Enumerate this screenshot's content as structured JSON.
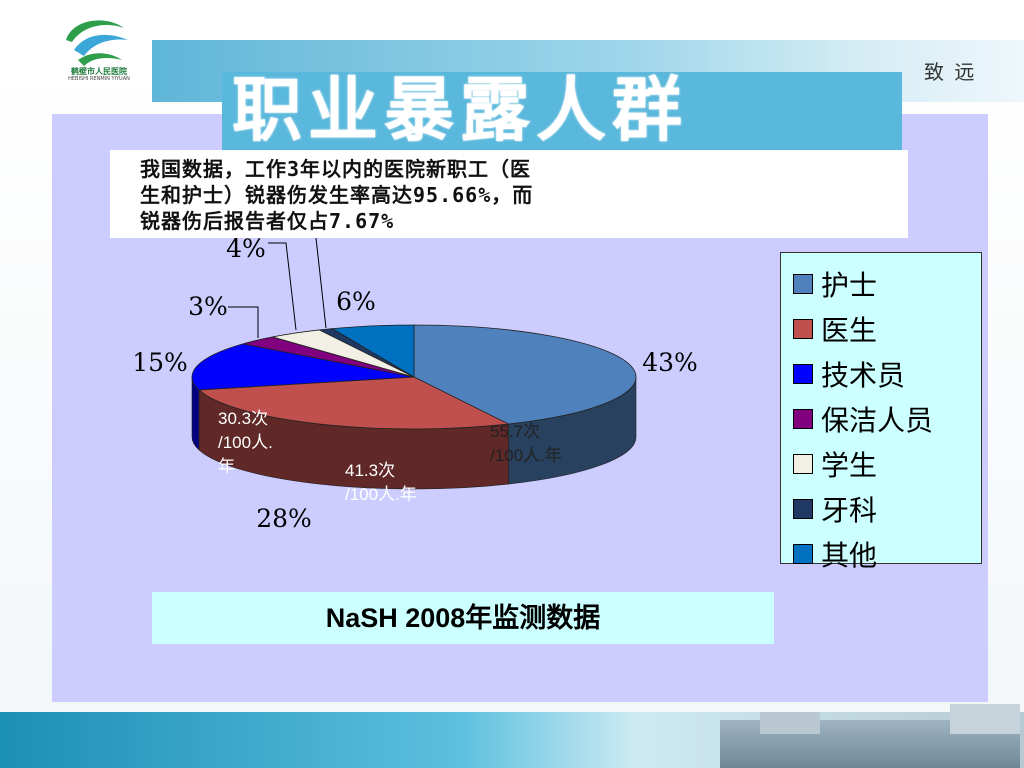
{
  "header": {
    "title": "职业暴露人群",
    "motto": "致 远",
    "logo_name": "鹤壁市人民医院",
    "logo_subtitle": "HEBISHI RENMIN YIYUAN"
  },
  "callout": {
    "lines": [
      "我国数据，工作3年以内的医院新职工（医",
      "生和护士）锐器伤发生率高达95.66%，而",
      "锐器伤后报告者仅占7.67%"
    ]
  },
  "chart_data": {
    "type": "pie",
    "categories": [
      "护士",
      "医生",
      "技术员",
      "保洁人员",
      "学生",
      "牙科",
      "其他"
    ],
    "values": [
      43,
      28,
      15,
      3,
      4,
      1,
      6
    ],
    "value_labels": [
      "43%",
      "28%",
      "15%",
      "3%",
      "4%",
      "",
      "6%"
    ],
    "colors": [
      "#4f81bd",
      "#c0504d",
      "#0000ff",
      "#800080",
      "#f2f0e4",
      "#1f3864",
      "#0070c0"
    ],
    "legend_position": "right",
    "annotations": [
      {
        "text_lines": [
          "55.7次",
          "/100人.年"
        ],
        "color": "#222222",
        "category": "护士"
      },
      {
        "text_lines": [
          "41.3次",
          "/100人.年"
        ],
        "color": "#ffffff",
        "category": "医生"
      },
      {
        "text_lines": [
          "30.3次",
          "/100人.",
          "年"
        ],
        "color": "#ffffff",
        "category": "医生"
      }
    ],
    "title": "",
    "source": "NaSH 2008年监测数据"
  }
}
